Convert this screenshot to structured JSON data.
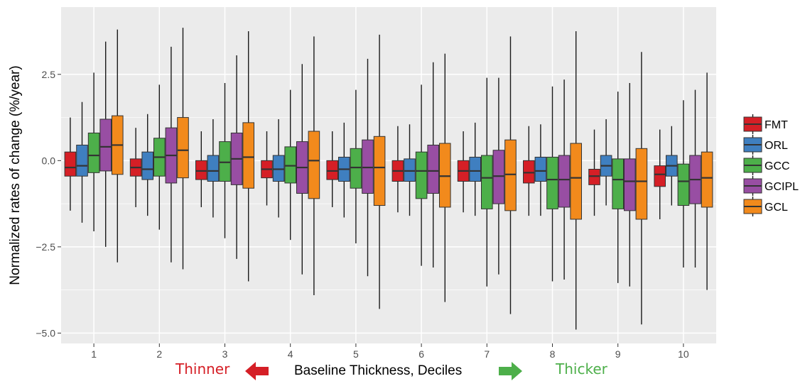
{
  "chart_data": {
    "type": "box",
    "xlabel": "Baseline Thickness, Deciles",
    "ylabel": "Normalized rates of change (%/year)",
    "categories": [
      "1",
      "2",
      "3",
      "4",
      "5",
      "6",
      "7",
      "8",
      "9",
      "10"
    ],
    "yticks": [
      2.5,
      0.0,
      -2.5,
      -5.0
    ],
    "ytick_labels": [
      "2.5",
      "0.0",
      "−2.5",
      "−5.0"
    ],
    "ylim": [
      -5.3,
      4.45
    ],
    "grid": true,
    "legend_position": "right",
    "series": [
      {
        "name": "FMT",
        "color": "#d51f26",
        "boxes": [
          {
            "whisker_low": -1.45,
            "q1": -0.45,
            "median": -0.2,
            "q3": 0.25,
            "whisker_high": 1.25
          },
          {
            "whisker_low": -1.35,
            "q1": -0.45,
            "median": -0.2,
            "q3": 0.05,
            "whisker_high": 0.95
          },
          {
            "whisker_low": -1.35,
            "q1": -0.55,
            "median": -0.3,
            "q3": 0.0,
            "whisker_high": 0.85
          },
          {
            "whisker_low": -1.3,
            "q1": -0.5,
            "median": -0.25,
            "q3": 0.0,
            "whisker_high": 0.85
          },
          {
            "whisker_low": -1.35,
            "q1": -0.55,
            "median": -0.3,
            "q3": 0.0,
            "whisker_high": 0.85
          },
          {
            "whisker_low": -1.5,
            "q1": -0.6,
            "median": -0.3,
            "q3": 0.0,
            "whisker_high": 1.0
          },
          {
            "whisker_low": -1.5,
            "q1": -0.6,
            "median": -0.3,
            "q3": 0.0,
            "whisker_high": 0.85
          },
          {
            "whisker_low": -1.6,
            "q1": -0.65,
            "median": -0.35,
            "q3": 0.0,
            "whisker_high": 1.0
          },
          {
            "whisker_low": -1.6,
            "q1": -0.7,
            "median": -0.45,
            "q3": -0.25,
            "whisker_high": 0.9
          },
          {
            "whisker_low": -1.7,
            "q1": -0.75,
            "median": -0.4,
            "q3": -0.15,
            "whisker_high": 0.9
          }
        ]
      },
      {
        "name": "ORL",
        "color": "#3f7fc0",
        "boxes": [
          {
            "whisker_low": -1.8,
            "q1": -0.45,
            "median": -0.15,
            "q3": 0.45,
            "whisker_high": 1.7
          },
          {
            "whisker_low": -1.6,
            "q1": -0.55,
            "median": -0.25,
            "q3": 0.25,
            "whisker_high": 1.35
          },
          {
            "whisker_low": -1.65,
            "q1": -0.6,
            "median": -0.3,
            "q3": 0.15,
            "whisker_high": 1.2
          },
          {
            "whisker_low": -1.65,
            "q1": -0.6,
            "median": -0.25,
            "q3": 0.15,
            "whisker_high": 1.2
          },
          {
            "whisker_low": -1.65,
            "q1": -0.6,
            "median": -0.25,
            "q3": 0.1,
            "whisker_high": 1.1
          },
          {
            "whisker_low": -1.6,
            "q1": -0.6,
            "median": -0.3,
            "q3": 0.05,
            "whisker_high": 1.05
          },
          {
            "whisker_low": -1.6,
            "q1": -0.6,
            "median": -0.3,
            "q3": 0.1,
            "whisker_high": 1.1
          },
          {
            "whisker_low": -1.6,
            "q1": -0.6,
            "median": -0.3,
            "q3": 0.1,
            "whisker_high": 1.05
          },
          {
            "whisker_low": -1.3,
            "q1": -0.45,
            "median": -0.15,
            "q3": 0.15,
            "whisker_high": 1.2
          },
          {
            "whisker_low": -1.3,
            "q1": -0.45,
            "median": -0.15,
            "q3": 0.15,
            "whisker_high": 1.0
          }
        ]
      },
      {
        "name": "GCC",
        "color": "#4daf4a",
        "boxes": [
          {
            "whisker_low": -2.05,
            "q1": -0.35,
            "median": 0.15,
            "q3": 0.8,
            "whisker_high": 2.55
          },
          {
            "whisker_low": -2.0,
            "q1": -0.45,
            "median": 0.1,
            "q3": 0.65,
            "whisker_high": 2.2
          },
          {
            "whisker_low": -2.25,
            "q1": -0.6,
            "median": -0.05,
            "q3": 0.55,
            "whisker_high": 2.25
          },
          {
            "whisker_low": -2.3,
            "q1": -0.65,
            "median": -0.15,
            "q3": 0.4,
            "whisker_high": 2.05
          },
          {
            "whisker_low": -2.4,
            "q1": -0.8,
            "median": -0.2,
            "q3": 0.35,
            "whisker_high": 2.05
          },
          {
            "whisker_low": -3.05,
            "q1": -1.1,
            "median": -0.3,
            "q3": 0.25,
            "whisker_high": 2.2
          },
          {
            "whisker_low": -3.65,
            "q1": -1.4,
            "median": -0.5,
            "q3": 0.15,
            "whisker_high": 2.4
          },
          {
            "whisker_low": -3.5,
            "q1": -1.4,
            "median": -0.55,
            "q3": 0.1,
            "whisker_high": 2.15
          },
          {
            "whisker_low": -3.55,
            "q1": -1.4,
            "median": -0.55,
            "q3": 0.05,
            "whisker_high": 2.0
          },
          {
            "whisker_low": -3.1,
            "q1": -1.3,
            "median": -0.6,
            "q3": -0.1,
            "whisker_high": 1.75
          }
        ]
      },
      {
        "name": "GCIPL",
        "color": "#984ea3",
        "boxes": [
          {
            "whisker_low": -2.5,
            "q1": -0.3,
            "median": 0.4,
            "q3": 1.2,
            "whisker_high": 3.45
          },
          {
            "whisker_low": -2.95,
            "q1": -0.65,
            "median": 0.15,
            "q3": 0.95,
            "whisker_high": 3.3
          },
          {
            "whisker_low": -2.85,
            "q1": -0.7,
            "median": 0.05,
            "q3": 0.8,
            "whisker_high": 3.05
          },
          {
            "whisker_low": -3.3,
            "q1": -0.95,
            "median": -0.2,
            "q3": 0.55,
            "whisker_high": 2.8
          },
          {
            "whisker_low": -3.35,
            "q1": -0.95,
            "median": -0.2,
            "q3": 0.6,
            "whisker_high": 2.95
          },
          {
            "whisker_low": -3.1,
            "q1": -0.95,
            "median": -0.3,
            "q3": 0.45,
            "whisker_high": 2.85
          },
          {
            "whisker_low": -3.3,
            "q1": -1.25,
            "median": -0.45,
            "q3": 0.3,
            "whisker_high": 2.4
          },
          {
            "whisker_low": -3.45,
            "q1": -1.35,
            "median": -0.55,
            "q3": 0.15,
            "whisker_high": 2.35
          },
          {
            "whisker_low": -3.65,
            "q1": -1.45,
            "median": -0.6,
            "q3": 0.05,
            "whisker_high": 2.25
          },
          {
            "whisker_low": -3.1,
            "q1": -1.25,
            "median": -0.55,
            "q3": 0.15,
            "whisker_high": 2.05
          }
        ]
      },
      {
        "name": "GCL",
        "color": "#f28a1c",
        "boxes": [
          {
            "whisker_low": -2.95,
            "q1": -0.4,
            "median": 0.45,
            "q3": 1.3,
            "whisker_high": 3.8
          },
          {
            "whisker_low": -3.15,
            "q1": -0.5,
            "median": 0.3,
            "q3": 1.25,
            "whisker_high": 3.85
          },
          {
            "whisker_low": -3.5,
            "q1": -0.8,
            "median": 0.1,
            "q3": 1.1,
            "whisker_high": 3.75
          },
          {
            "whisker_low": -3.9,
            "q1": -1.1,
            "median": 0.0,
            "q3": 0.85,
            "whisker_high": 3.6
          },
          {
            "whisker_low": -4.3,
            "q1": -1.3,
            "median": -0.2,
            "q3": 0.7,
            "whisker_high": 3.65
          },
          {
            "whisker_low": -4.1,
            "q1": -1.35,
            "median": -0.45,
            "q3": 0.5,
            "whisker_high": 3.1
          },
          {
            "whisker_low": -4.45,
            "q1": -1.45,
            "median": -0.4,
            "q3": 0.6,
            "whisker_high": 3.6
          },
          {
            "whisker_low": -4.9,
            "q1": -1.7,
            "median": -0.5,
            "q3": 0.5,
            "whisker_high": 3.75
          },
          {
            "whisker_low": -4.75,
            "q1": -1.7,
            "median": -0.6,
            "q3": 0.35,
            "whisker_high": 3.15
          },
          {
            "whisker_low": -3.75,
            "q1": -1.35,
            "median": -0.5,
            "q3": 0.25,
            "whisker_high": 2.55
          }
        ]
      }
    ]
  },
  "annotations": {
    "thinner_label": "Thinner",
    "thicker_label": "Thicker",
    "thinner_color": "#d51f26",
    "thicker_color": "#4daf4a",
    "thinner_arrow_icon": "arrow-left-icon",
    "thicker_arrow_icon": "arrow-right-icon"
  },
  "colors": {
    "panel_background": "#ebebeb",
    "grid_color": "#ffffff",
    "whisker_color": "#1a1a1a"
  }
}
